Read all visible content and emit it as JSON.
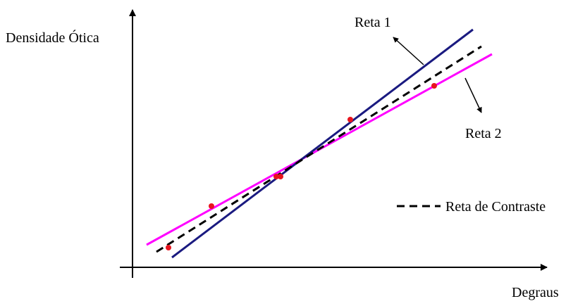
{
  "axes": {
    "y_label": "Densidade Ótica",
    "x_label": "Degraus"
  },
  "lines": {
    "line1_label": "Reta 1",
    "line2_label": "Reta 2",
    "legend_label": "Reta de Contraste"
  },
  "colors": {
    "line1": "#1a1a80",
    "line2": "#ff00ff",
    "contrast": "#000000",
    "points": "#e8141e",
    "axes": "#000000"
  }
}
